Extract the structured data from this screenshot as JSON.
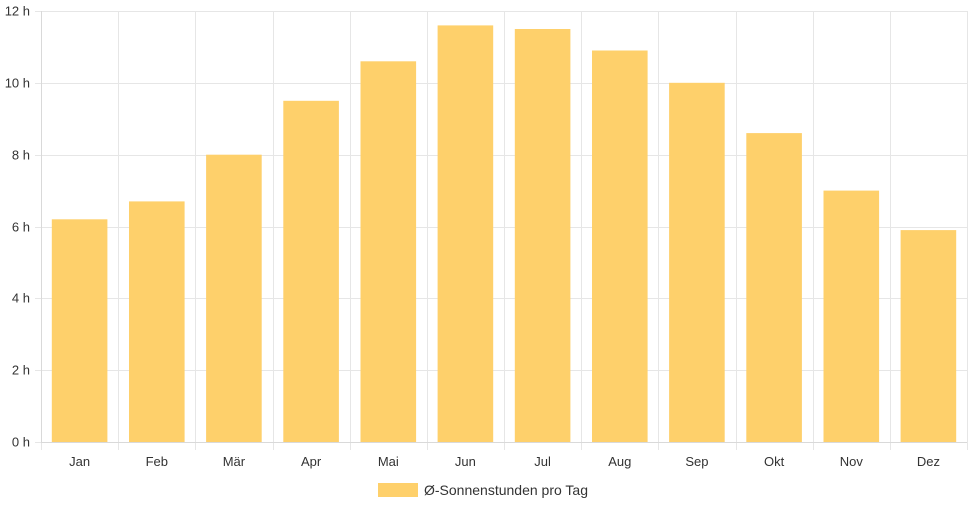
{
  "chart_data": {
    "type": "bar",
    "categories": [
      "Jan",
      "Feb",
      "Mär",
      "Apr",
      "Mai",
      "Jun",
      "Jul",
      "Aug",
      "Sep",
      "Okt",
      "Nov",
      "Dez"
    ],
    "series": [
      {
        "name": "Ø-Sonnenstunden pro Tag",
        "values": [
          6.2,
          6.7,
          8.0,
          9.5,
          10.6,
          11.6,
          11.5,
          10.9,
          10.0,
          8.6,
          7.0,
          5.9
        ]
      }
    ],
    "y_ticks": [
      "0 h",
      "2 h",
      "4 h",
      "6 h",
      "8 h",
      "10 h",
      "12 h"
    ],
    "ylim": [
      0,
      12
    ],
    "y_tick_step": 2,
    "grid": true,
    "legend_position": "bottom",
    "bar_color": "#fed06b",
    "grid_color": "#e6e6e6"
  }
}
